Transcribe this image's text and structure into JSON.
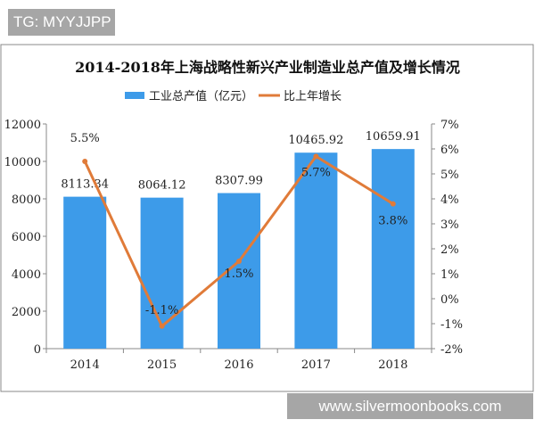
{
  "overlay": {
    "tag": "TG: MYYJJPP",
    "site": "www.silvermoonbooks.com"
  },
  "chart_data": {
    "type": "bar+line",
    "title": "2014-2018年上海战略性新兴产业制造业总产值及增长情况",
    "categories": [
      "2014",
      "2015",
      "2016",
      "2017",
      "2018"
    ],
    "series": [
      {
        "name": "工业总产值（亿元）",
        "type": "bar",
        "axis": "left",
        "color": "#3d9be9",
        "values": [
          8113.34,
          8064.12,
          8307.99,
          10465.92,
          10659.91
        ],
        "labels": [
          "8113.34",
          "8064.12",
          "8307.99",
          "10465.92",
          "10659.91"
        ]
      },
      {
        "name": "比上年增长",
        "type": "line",
        "axis": "right",
        "color": "#e07b39",
        "values": [
          5.5,
          -1.1,
          1.5,
          5.7,
          3.8
        ],
        "labels": [
          "5.5%",
          "-1.1%",
          "1.5%",
          "5.7%",
          "3.8%"
        ]
      }
    ],
    "left_axis": {
      "ylim": [
        0,
        12000
      ],
      "ticks": [
        "0",
        "2000",
        "4000",
        "6000",
        "8000",
        "10000",
        "12000"
      ]
    },
    "right_axis": {
      "ylim": [
        -2,
        7
      ],
      "ticks": [
        "-2%",
        "-1%",
        "0%",
        "1%",
        "2%",
        "3%",
        "4%",
        "5%",
        "6%",
        "7%"
      ]
    },
    "legend": "top-center",
    "grid": false
  }
}
